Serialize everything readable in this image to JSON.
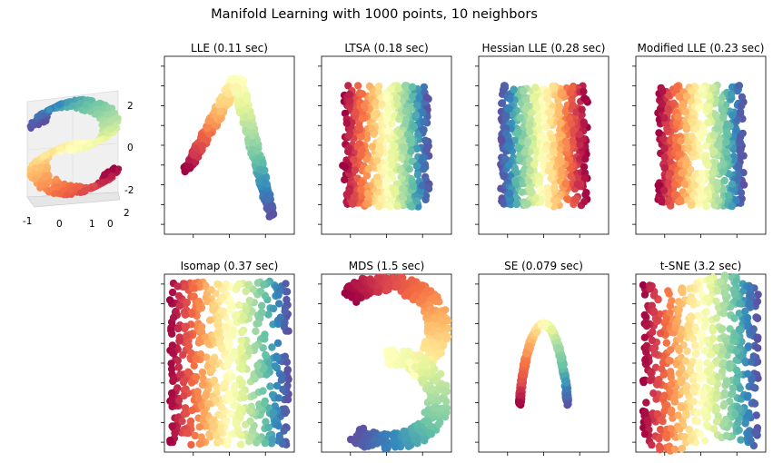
{
  "figure": {
    "title": "Manifold Learning with 1000 points, 10 neighbors"
  },
  "chart_data": {
    "type": "scatter",
    "colormap": "Spectral",
    "colormap_stops": [
      "#9e0142",
      "#d53e4f",
      "#f46d43",
      "#fdae61",
      "#fee08b",
      "#ffffbf",
      "#e6f598",
      "#abdda4",
      "#66c2a5",
      "#3288bd",
      "#5e4fa2"
    ],
    "original": {
      "kind": "3d-scatter",
      "description": "S-curve dataset",
      "x_ticks": [
        "-1",
        "0",
        "1"
      ],
      "y_ticks": [
        "0",
        "2"
      ],
      "z_ticks": [
        "2",
        "0",
        "-2"
      ]
    },
    "panels": [
      {
        "title": "LLE (0.11 sec)",
        "shape": "inverted-v"
      },
      {
        "title": "LTSA (0.18 sec)",
        "shape": "rectangle-horizontal-gradient"
      },
      {
        "title": "Hessian LLE (0.28 sec)",
        "shape": "rectangle-horizontal-gradient-reversed"
      },
      {
        "title": "Modified LLE (0.23 sec)",
        "shape": "rectangle-horizontal-gradient"
      },
      {
        "title": "Isomap (0.37 sec)",
        "shape": "rectangle-horizontal-gradient"
      },
      {
        "title": "MDS (1.5 sec)",
        "shape": "s-curve"
      },
      {
        "title": "SE (0.079 sec)",
        "shape": "narrow-inverted-u"
      },
      {
        "title": "t-SNE (3.2 sec)",
        "shape": "folded-rectangle"
      }
    ]
  }
}
